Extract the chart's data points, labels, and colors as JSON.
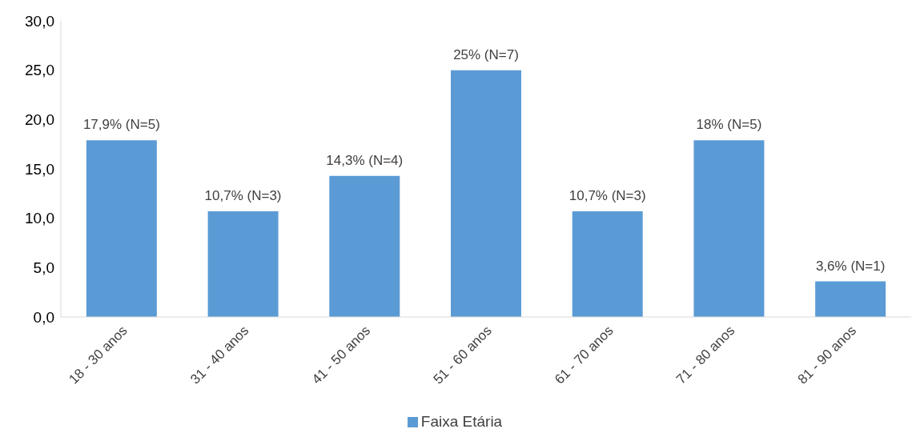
{
  "chart_data": {
    "type": "bar",
    "categories": [
      "18 - 30 anos",
      "31 - 40 anos",
      "41 - 50 anos",
      "51 - 60 anos",
      "61 - 70 anos",
      "71 - 80 anos",
      "81 - 90 anos"
    ],
    "series": [
      {
        "name": "Faixa Etária",
        "color": "#5b9bd5",
        "values": [
          17.9,
          10.7,
          14.3,
          25,
          10.7,
          17.9,
          3.6
        ],
        "value_labels": [
          "17,9% (N=5)",
          "10,7% (N=3)",
          "14,3% (N=4)",
          "25% (N=7)",
          "10,7% (N=3)",
          "18% (N=5)",
          "3,6% (N=1)"
        ]
      }
    ],
    "ylim": [
      0,
      30
    ],
    "yticks": [
      {
        "value": 0,
        "label": "0,0"
      },
      {
        "value": 5,
        "label": "5,0"
      },
      {
        "value": 10,
        "label": "10,0"
      },
      {
        "value": 15,
        "label": "15,0"
      },
      {
        "value": 20,
        "label": "20,0"
      },
      {
        "value": 25,
        "label": "25,0"
      },
      {
        "value": 30,
        "label": "30,0"
      }
    ],
    "grid": false,
    "legend": "bottom"
  }
}
